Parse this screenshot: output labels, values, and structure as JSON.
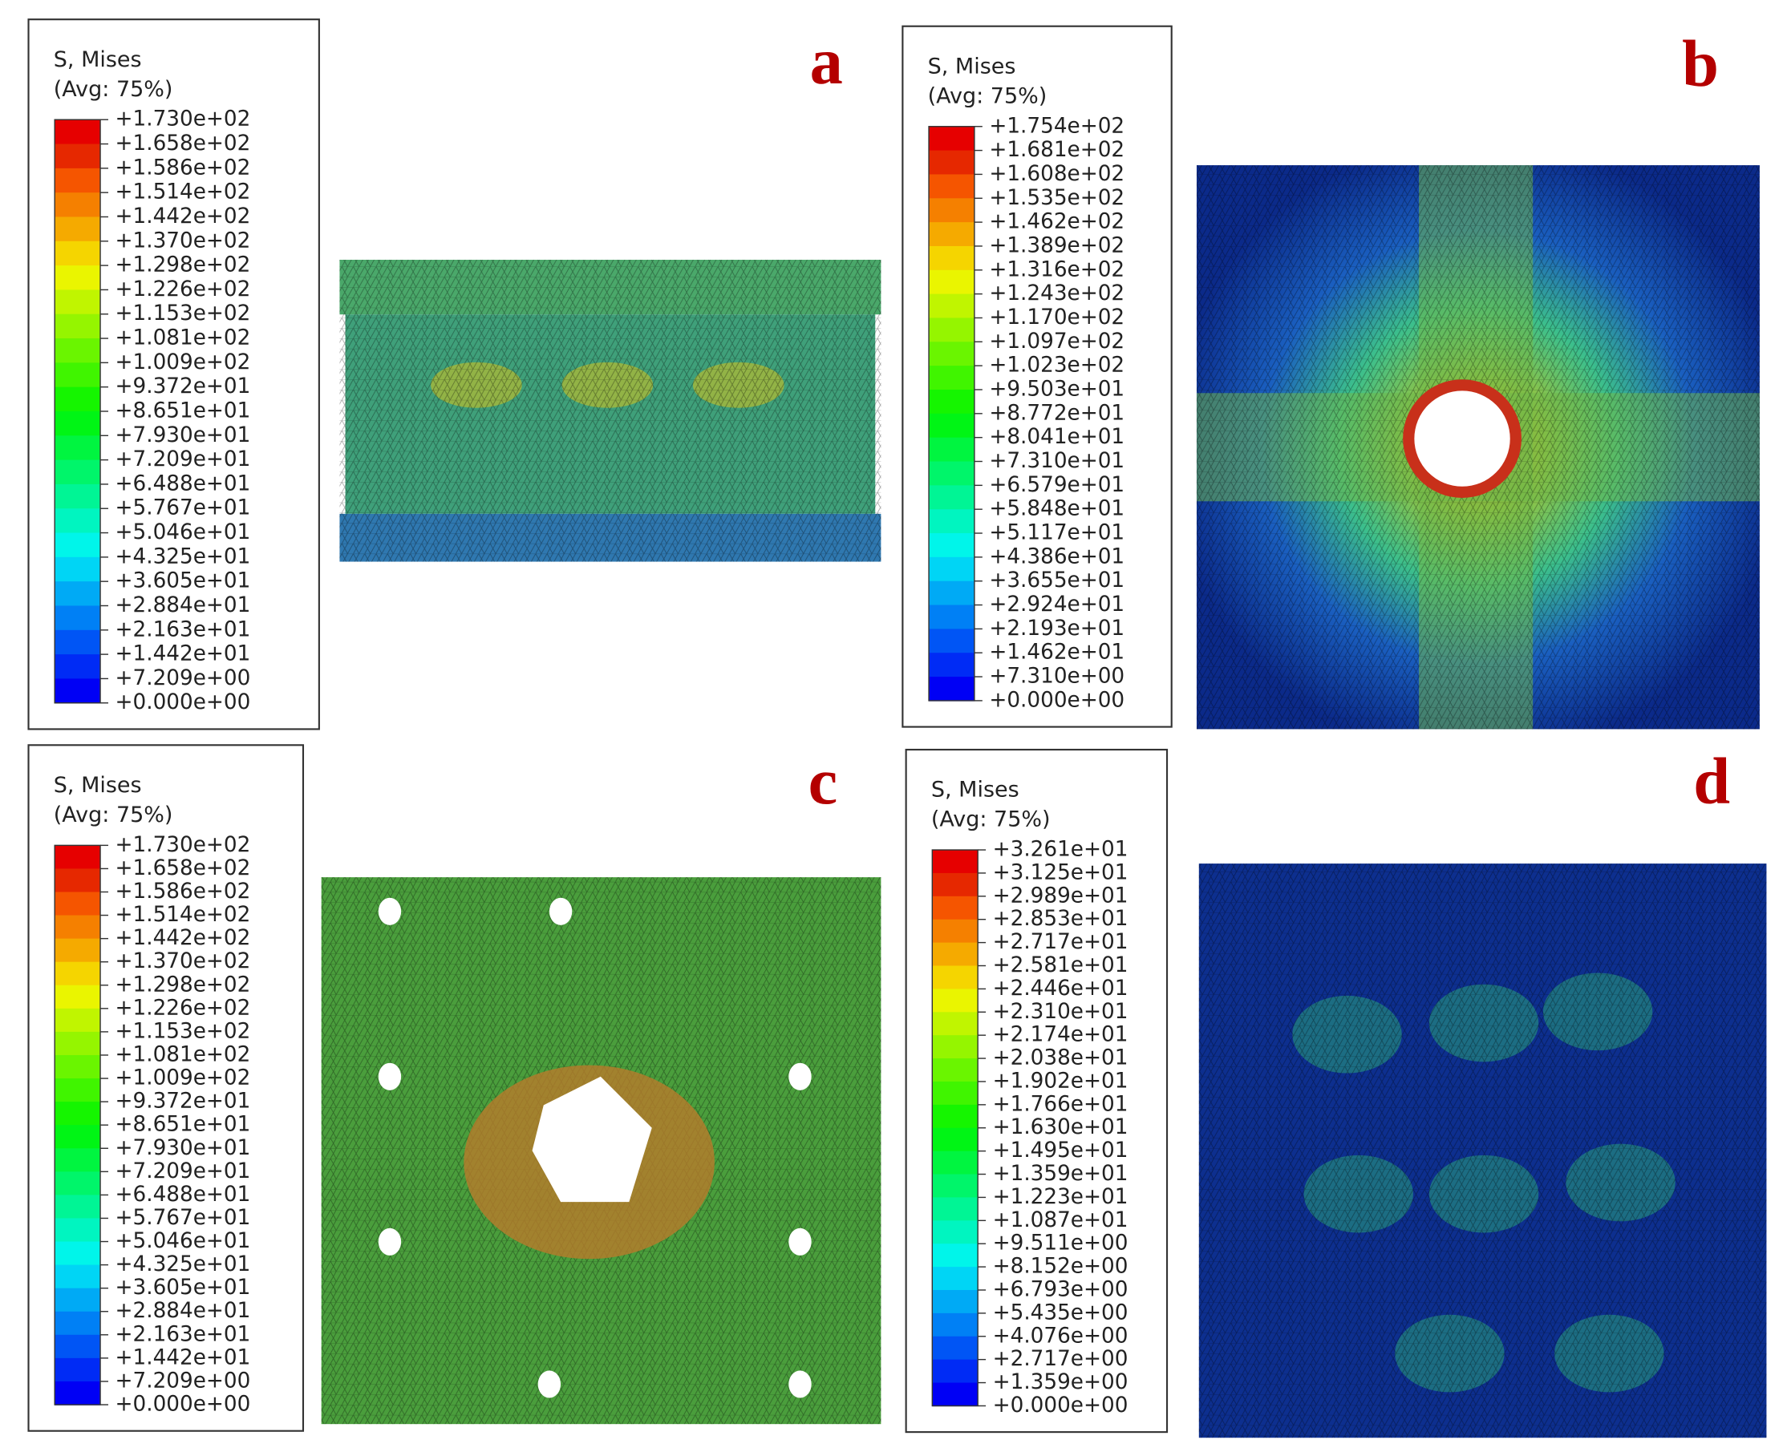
{
  "panels": [
    {
      "label": "a",
      "legend": {
        "title": "S, Mises",
        "subtitle": "(Avg: 75%)",
        "ticks": [
          "+1.730e+02",
          "+1.658e+02",
          "+1.586e+02",
          "+1.514e+02",
          "+1.442e+02",
          "+1.370e+02",
          "+1.298e+02",
          "+1.226e+02",
          "+1.153e+02",
          "+1.081e+02",
          "+1.009e+02",
          "+9.372e+01",
          "+8.651e+01",
          "+7.930e+01",
          "+7.209e+01",
          "+6.488e+01",
          "+5.767e+01",
          "+5.046e+01",
          "+4.325e+01",
          "+3.605e+01",
          "+2.884e+01",
          "+2.163e+01",
          "+1.442e+01",
          "+7.209e+00",
          "+0.000e+00"
        ]
      }
    },
    {
      "label": "b",
      "legend": {
        "title": "S, Mises",
        "subtitle": "(Avg: 75%)",
        "ticks": [
          "+1.754e+02",
          "+1.681e+02",
          "+1.608e+02",
          "+1.535e+02",
          "+1.462e+02",
          "+1.389e+02",
          "+1.316e+02",
          "+1.243e+02",
          "+1.170e+02",
          "+1.097e+02",
          "+1.023e+02",
          "+9.503e+01",
          "+8.772e+01",
          "+8.041e+01",
          "+7.310e+01",
          "+6.579e+01",
          "+5.848e+01",
          "+5.117e+01",
          "+4.386e+01",
          "+3.655e+01",
          "+2.924e+01",
          "+2.193e+01",
          "+1.462e+01",
          "+7.310e+00",
          "+0.000e+00"
        ]
      }
    },
    {
      "label": "c",
      "legend": {
        "title": "S, Mises",
        "subtitle": "(Avg: 75%)",
        "ticks": [
          "+1.730e+02",
          "+1.658e+02",
          "+1.586e+02",
          "+1.514e+02",
          "+1.442e+02",
          "+1.370e+02",
          "+1.298e+02",
          "+1.226e+02",
          "+1.153e+02",
          "+1.081e+02",
          "+1.009e+02",
          "+9.372e+01",
          "+8.651e+01",
          "+7.930e+01",
          "+7.209e+01",
          "+6.488e+01",
          "+5.767e+01",
          "+5.046e+01",
          "+4.325e+01",
          "+3.605e+01",
          "+2.884e+01",
          "+2.163e+01",
          "+1.442e+01",
          "+7.209e+00",
          "+0.000e+00"
        ]
      }
    },
    {
      "label": "d",
      "legend": {
        "title": "S, Mises",
        "subtitle": "(Avg: 75%)",
        "ticks": [
          "+3.261e+01",
          "+3.125e+01",
          "+2.989e+01",
          "+2.853e+01",
          "+2.717e+01",
          "+2.581e+01",
          "+2.446e+01",
          "+2.310e+01",
          "+2.174e+01",
          "+2.038e+01",
          "+1.902e+01",
          "+1.766e+01",
          "+1.630e+01",
          "+1.495e+01",
          "+1.359e+01",
          "+1.223e+01",
          "+1.087e+01",
          "+9.511e+00",
          "+8.152e+00",
          "+6.793e+00",
          "+5.435e+00",
          "+4.076e+00",
          "+2.717e+00",
          "+1.359e+00",
          "+0.000e+00"
        ]
      }
    }
  ]
}
